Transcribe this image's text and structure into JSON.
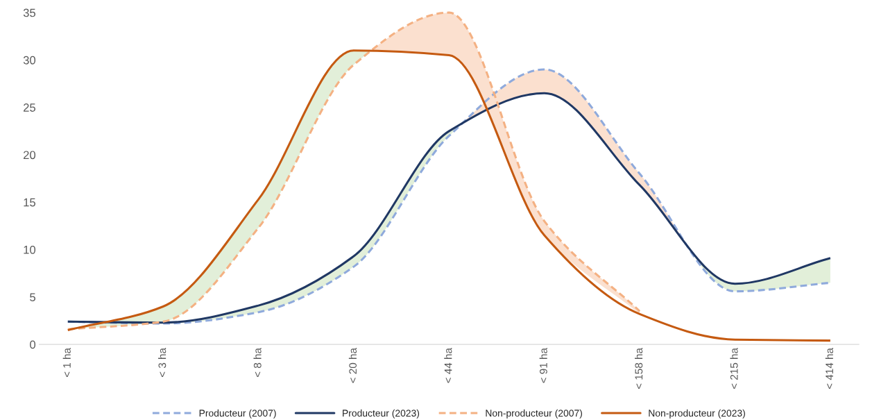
{
  "chart_data": {
    "type": "line",
    "categories": [
      "< 1 ha",
      "< 3 ha",
      "< 8 ha",
      "< 20 ha",
      "< 44 ha",
      "< 91 ha",
      "< 158 ha",
      "< 215 ha",
      "< 414 ha"
    ],
    "series": [
      {
        "name": "Producteur (2007)",
        "color": "#8faadc",
        "line_style": "dashed",
        "values": [
          2.4,
          2.2,
          3.4,
          8.2,
          22,
          29,
          18,
          5.6,
          6.5
        ]
      },
      {
        "name": "Producteur (2023)",
        "color": "#203864",
        "line_style": "solid",
        "values": [
          2.4,
          2.3,
          4.1,
          9.3,
          22.5,
          26.5,
          16.8,
          6.4,
          9.1
        ]
      },
      {
        "name": "Non-producteur (2007)",
        "color": "#f4b183",
        "line_style": "dashed",
        "values": [
          1.6,
          2.4,
          12.3,
          29.5,
          35,
          13,
          3.5,
          null,
          null
        ]
      },
      {
        "name": "Non-producteur (2023)",
        "color": "#c55a11",
        "line_style": "solid",
        "values": [
          1.5,
          4,
          15.3,
          31,
          30.5,
          11.5,
          3.2,
          0.5,
          0.4
        ]
      }
    ],
    "ylim": [
      0,
      35
    ],
    "yticks": [
      0,
      5,
      10,
      15,
      20,
      25,
      30,
      35
    ],
    "grid": false,
    "legend": "bottom"
  }
}
